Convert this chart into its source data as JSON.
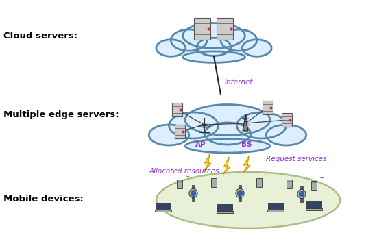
{
  "title": "",
  "background_color": "#ffffff",
  "labels": {
    "cloud_servers": "Cloud servers:",
    "edge_servers": "Multiple edge servers:",
    "mobile_devices": "Mobile devices:",
    "internet": "Internet",
    "allocated": "Allocated resources",
    "request": "Request services",
    "ap": "AP",
    "bs": "BS"
  },
  "label_colors": {
    "cloud_servers": "#000000",
    "edge_servers": "#000000",
    "mobile_devices": "#000000",
    "internet": "#9933cc",
    "allocated": "#9933cc",
    "request": "#9933cc",
    "ap": "#9933cc",
    "bs": "#9933cc"
  },
  "cloud_color": "#5588aa",
  "cloud_fill": "#ddeeff",
  "mobile_oval_color": "#aabb88",
  "mobile_oval_fill": "#e8f0d8",
  "lightning_color": "#ffdd00",
  "internet_line_color": "#222222",
  "edge_line_color": "#444444"
}
